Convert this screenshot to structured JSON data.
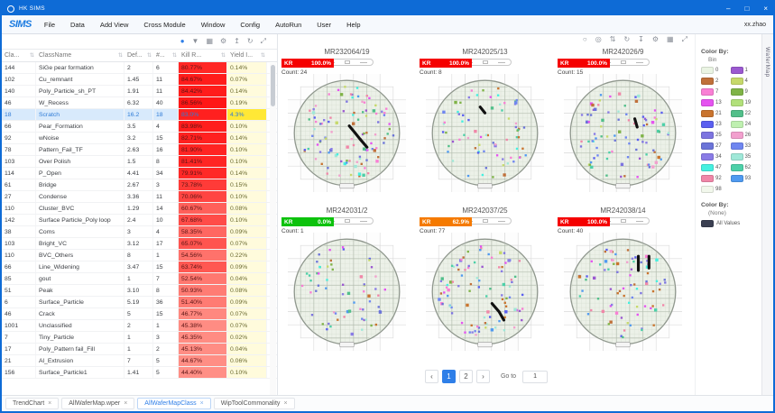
{
  "window": {
    "title": "HK SIMS",
    "controls": {
      "minimize": "–",
      "maximize": "□",
      "close": "×"
    }
  },
  "menu": {
    "logo": "SIMS",
    "items": [
      "File",
      "Data",
      "Add View",
      "Cross Module",
      "Window",
      "Config",
      "AutoRun",
      "User",
      "Help"
    ],
    "user": "xx.zhao"
  },
  "table": {
    "toolbar_icons": [
      "pin",
      "filter",
      "grid",
      "gear",
      "export",
      "refresh",
      "expand"
    ],
    "columns": [
      "Cla...",
      "ClassName",
      "Def...",
      "#...",
      "Kill R...",
      "Yield I..."
    ],
    "rows": [
      {
        "cla": "144",
        "name": "SiGe pear formation",
        "def": "2",
        "num": "6",
        "kill": "80.77%",
        "yield": "0.14%"
      },
      {
        "cla": "102",
        "name": "Cu_remnant",
        "def": "1.45",
        "num": "11",
        "kill": "84.67%",
        "yield": "0.07%"
      },
      {
        "cla": "140",
        "name": "Poly_Particle_sh_PT",
        "def": "1.91",
        "num": "11",
        "kill": "84.42%",
        "yield": "0.14%"
      },
      {
        "cla": "46",
        "name": "W_Recess",
        "def": "6.32",
        "num": "40",
        "kill": "86.56%",
        "yield": "0.19%"
      },
      {
        "cla": "18",
        "name": "Scratch",
        "def": "16.2",
        "num": "18",
        "kill": "83.0%",
        "yield": "4.3%",
        "selected": true
      },
      {
        "cla": "66",
        "name": "Pear_Formation",
        "def": "3.5",
        "num": "4",
        "kill": "83.98%",
        "yield": "0.10%"
      },
      {
        "cla": "92",
        "name": "wNoise",
        "def": "3.2",
        "num": "15",
        "kill": "82.71%",
        "yield": "0.14%"
      },
      {
        "cla": "78",
        "name": "Pattern_Fail_TF",
        "def": "2.63",
        "num": "16",
        "kill": "81.90%",
        "yield": "0.10%"
      },
      {
        "cla": "103",
        "name": "Over Polish",
        "def": "1.5",
        "num": "8",
        "kill": "81.41%",
        "yield": "0.10%"
      },
      {
        "cla": "114",
        "name": "P_Open",
        "def": "4.41",
        "num": "34",
        "kill": "79.91%",
        "yield": "0.14%"
      },
      {
        "cla": "61",
        "name": "Bridge",
        "def": "2.67",
        "num": "3",
        "kill": "73.78%",
        "yield": "0.15%"
      },
      {
        "cla": "27",
        "name": "Condense",
        "def": "3.36",
        "num": "11",
        "kill": "70.06%",
        "yield": "0.10%"
      },
      {
        "cla": "110",
        "name": "Cluster_BVC",
        "def": "1.29",
        "num": "14",
        "kill": "60.67%",
        "yield": "0.08%"
      },
      {
        "cla": "142",
        "name": "Surface Particle_Poly loop",
        "def": "2.4",
        "num": "10",
        "kill": "67.68%",
        "yield": "0.10%"
      },
      {
        "cla": "38",
        "name": "Coms",
        "def": "3",
        "num": "4",
        "kill": "58.35%",
        "yield": "0.09%"
      },
      {
        "cla": "103",
        "name": "Bright_VC",
        "def": "3.12",
        "num": "17",
        "kill": "65.07%",
        "yield": "0.07%"
      },
      {
        "cla": "110",
        "name": "BVC_Others",
        "def": "8",
        "num": "1",
        "kill": "54.56%",
        "yield": "0.22%"
      },
      {
        "cla": "66",
        "name": "Line_Widening",
        "def": "3.47",
        "num": "15",
        "kill": "63.74%",
        "yield": "0.09%"
      },
      {
        "cla": "85",
        "name": "gout",
        "def": "1",
        "num": "7",
        "kill": "52.54%",
        "yield": "0.04%"
      },
      {
        "cla": "51",
        "name": "Peak",
        "def": "3.10",
        "num": "8",
        "kill": "50.93%",
        "yield": "0.08%"
      },
      {
        "cla": "6",
        "name": "Surface_Particle",
        "def": "5.19",
        "num": "36",
        "kill": "51.40%",
        "yield": "0.09%"
      },
      {
        "cla": "46",
        "name": "Crack",
        "def": "5",
        "num": "15",
        "kill": "46.77%",
        "yield": "0.07%"
      },
      {
        "cla": "1001",
        "name": "Unclassified",
        "def": "2",
        "num": "1",
        "kill": "45.38%",
        "yield": "0.07%"
      },
      {
        "cla": "7",
        "name": "Tiny_Particle",
        "def": "1",
        "num": "3",
        "kill": "45.35%",
        "yield": "0.02%"
      },
      {
        "cla": "17",
        "name": "Poly_Pattern fail_Fill",
        "def": "1",
        "num": "2",
        "kill": "45.13%",
        "yield": "0.04%"
      },
      {
        "cla": "21",
        "name": "Al_Extrusion",
        "def": "7",
        "num": "5",
        "kill": "44.67%",
        "yield": "0.06%"
      },
      {
        "cla": "156",
        "name": "Surface_Particle1",
        "def": "1.41",
        "num": "5",
        "kill": "44.40%",
        "yield": "0.10%"
      }
    ]
  },
  "wafers": {
    "toolbar_icons": [
      "circle",
      "target",
      "sort",
      "refresh",
      "download",
      "gear",
      "grid",
      "expand"
    ],
    "items": [
      {
        "id": "MR232064/19",
        "kr_label": "KR",
        "kr_value": "100.0%",
        "kr_color": "#f50000",
        "count_label": "Count:",
        "count": "24",
        "dots": 105,
        "scratches": [
          [
            [
              52,
              44
            ],
            [
              57,
              50
            ],
            [
              61,
              55
            ],
            [
              67,
              62
            ]
          ]
        ]
      },
      {
        "id": "MR242025/13",
        "kr_label": "KR",
        "kr_value": "100.0%",
        "kr_color": "#f50000",
        "count_label": "Count:",
        "count": "8",
        "dots": 72,
        "scratches": [
          [
            [
              46,
              28
            ],
            [
              50,
              33
            ]
          ]
        ]
      },
      {
        "id": "MR242026/9",
        "kr_label": "KR",
        "kr_value": "100.0%",
        "kr_color": "#f50000",
        "count_label": "Count:",
        "count": "15",
        "dots": 88,
        "scratches": [
          [
            [
              60,
              38
            ],
            [
              62,
              45
            ]
          ]
        ]
      },
      {
        "id": "MR242031/2",
        "kr_label": "KR",
        "kr_value": "0.0%",
        "kr_color": "#0cc20c",
        "count_label": "Count:",
        "count": "1",
        "dots": 62,
        "scratches": []
      },
      {
        "id": "MR242037/25",
        "kr_label": "KR",
        "kr_value": "62.9%",
        "kr_color": "#f57a00",
        "count_label": "Count:",
        "count": "77",
        "dots": 95,
        "scratches": [
          [
            [
              56,
              60
            ],
            [
              62,
              67
            ],
            [
              66,
              74
            ]
          ]
        ]
      },
      {
        "id": "MR242038/14",
        "kr_label": "KR",
        "kr_value": "100.0%",
        "kr_color": "#f50000",
        "count_label": "Count:",
        "count": "40",
        "dots": 80,
        "scratches": [
          [
            [
              63,
              20
            ],
            [
              63,
              32
            ]
          ],
          [
            [
              72,
              20
            ],
            [
              72,
              30
            ]
          ]
        ]
      }
    ],
    "pagination": {
      "prev": "‹",
      "pages": [
        "1",
        "2"
      ],
      "active": "1",
      "next": "›",
      "goto_label": "Go to",
      "goto_value": "1"
    }
  },
  "legend": {
    "title": "Color By:",
    "subtitle": "Bin",
    "bins": [
      {
        "bin": "0",
        "color": "#eaf4e3"
      },
      {
        "bin": "1",
        "color": "#9b59d0"
      },
      {
        "bin": "2",
        "color": "#c0703a"
      },
      {
        "bin": "4",
        "color": "#c6d96b"
      },
      {
        "bin": "7",
        "color": "#f97fd4"
      },
      {
        "bin": "9",
        "color": "#7fb347"
      },
      {
        "bin": "13",
        "color": "#e553f0"
      },
      {
        "bin": "19",
        "color": "#b2e07a"
      },
      {
        "bin": "21",
        "color": "#c9742e"
      },
      {
        "bin": "22",
        "color": "#52bf8a"
      },
      {
        "bin": "23",
        "color": "#5b5ff0"
      },
      {
        "bin": "24",
        "color": "#bff0b0"
      },
      {
        "bin": "25",
        "color": "#7d74e0"
      },
      {
        "bin": "26",
        "color": "#f2a0ce"
      },
      {
        "bin": "27",
        "color": "#6b74d8"
      },
      {
        "bin": "33",
        "color": "#6f86f0"
      },
      {
        "bin": "34",
        "color": "#8a7ce6"
      },
      {
        "bin": "35",
        "color": "#9fe8d8"
      },
      {
        "bin": "47",
        "color": "#45f0e0"
      },
      {
        "bin": "62",
        "color": "#4dd0a8"
      },
      {
        "bin": "92",
        "color": "#f087a8"
      },
      {
        "bin": "93",
        "color": "#4f9af0"
      },
      {
        "bin": "98",
        "color": "#f2f8ec"
      }
    ],
    "second_title": "Color By:",
    "second_subtitle": "(None)",
    "all_values": {
      "label": "All Values",
      "color": "#3a3f51"
    }
  },
  "side_tab": "WaferMap",
  "bottom_tabs": [
    {
      "label": "TrendChart",
      "active": false
    },
    {
      "label": "AllWaferMap.wper",
      "active": false
    },
    {
      "label": "AllWaferMapClass",
      "active": true
    },
    {
      "label": "WipToolCommonality",
      "active": false
    }
  ]
}
